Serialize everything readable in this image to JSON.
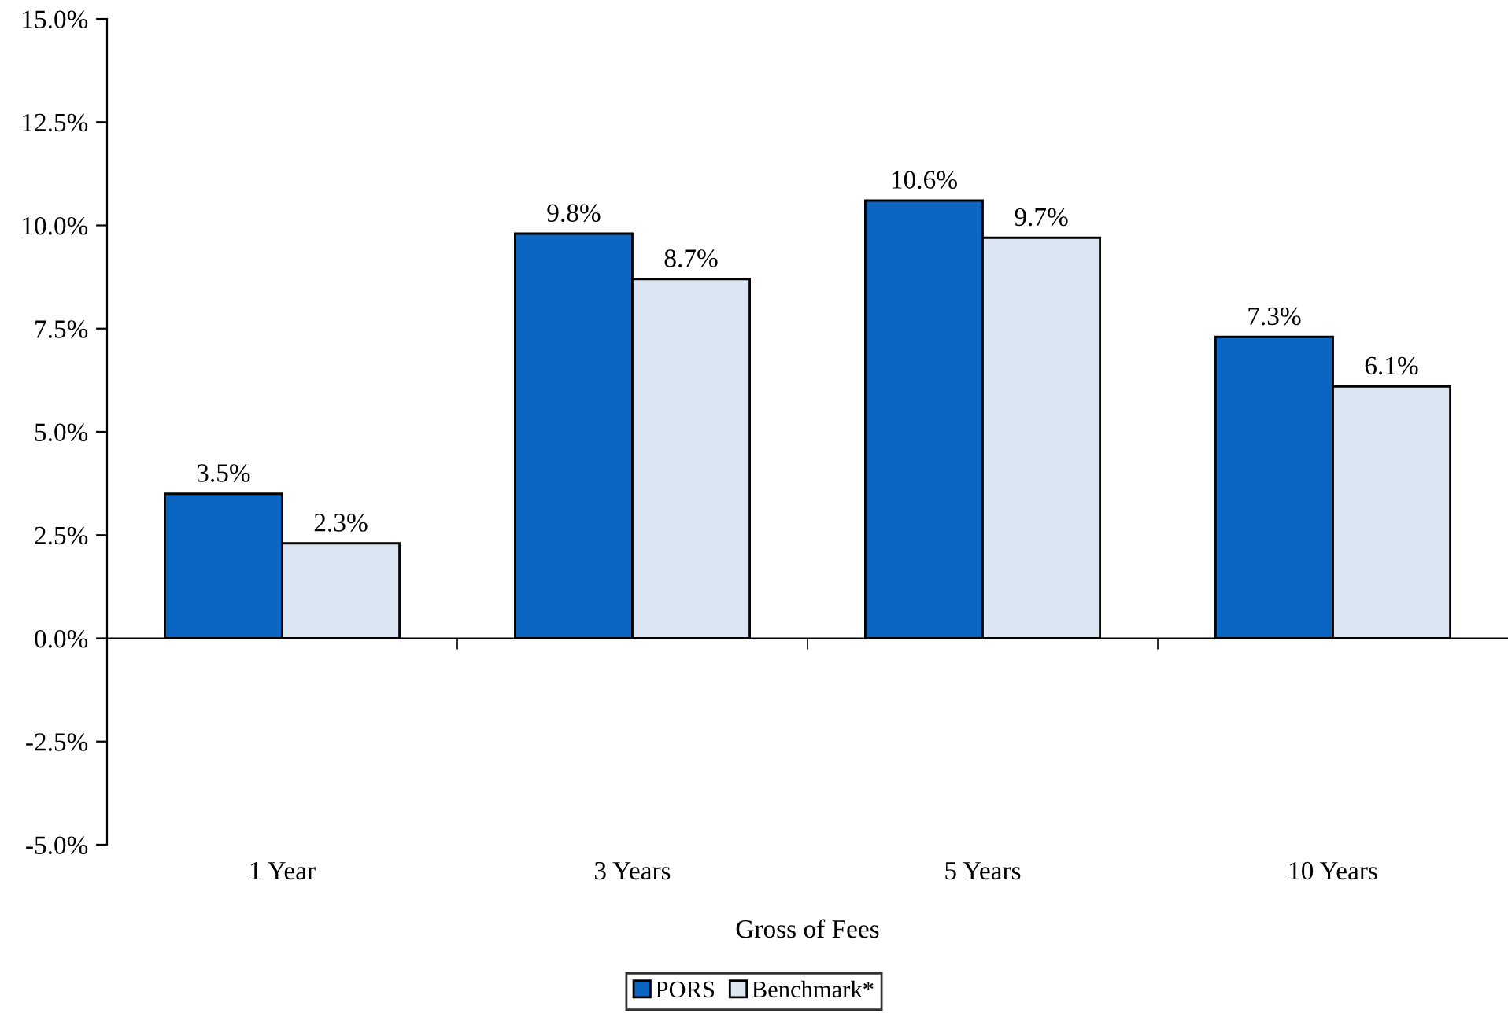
{
  "chart_data": {
    "type": "bar",
    "xlabel": "Gross of Fees",
    "categories": [
      "1 Year",
      "3 Years",
      "5 Years",
      "10 Years"
    ],
    "series": [
      {
        "name": "PORS",
        "color": "#0a66c2",
        "values": [
          3.5,
          9.8,
          10.6,
          7.3
        ],
        "value_labels": [
          "3.5%",
          "9.8%",
          "10.6%",
          "7.3%"
        ]
      },
      {
        "name": "Benchmark*",
        "color": "#dce6f2",
        "values": [
          2.3,
          8.7,
          9.7,
          6.1
        ],
        "value_labels": [
          "2.3%",
          "8.7%",
          "9.7%",
          "6.1%"
        ]
      }
    ],
    "ylim": [
      -5,
      15
    ],
    "yticks": [
      {
        "value": -5,
        "label": "-5.0%"
      },
      {
        "value": -2.5,
        "label": "-2.5%"
      },
      {
        "value": 0,
        "label": "0.0%"
      },
      {
        "value": 2.5,
        "label": "2.5%"
      },
      {
        "value": 5,
        "label": "5.0%"
      },
      {
        "value": 7.5,
        "label": "7.5%"
      },
      {
        "value": 10,
        "label": "10.0%"
      },
      {
        "value": 12.5,
        "label": "12.5%"
      },
      {
        "value": 15,
        "label": "15.0%"
      }
    ],
    "legend": "bottom"
  }
}
